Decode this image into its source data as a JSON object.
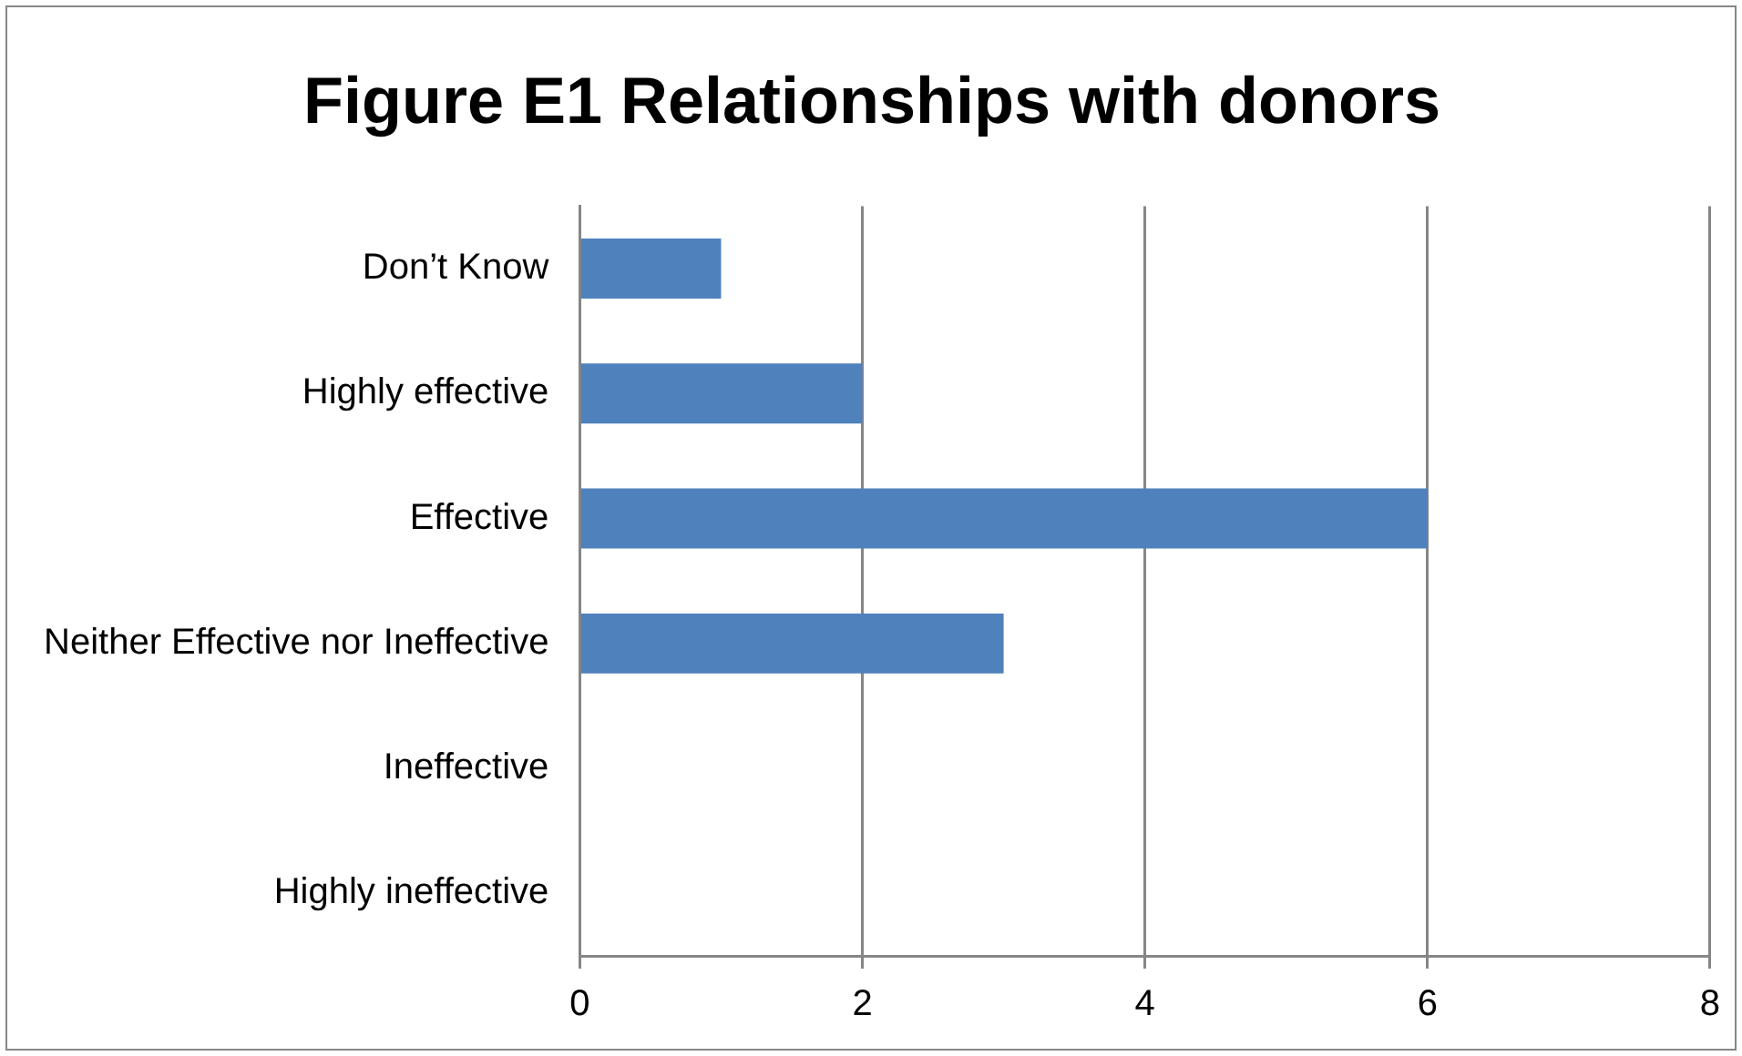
{
  "chart_data": {
    "type": "bar",
    "orientation": "horizontal",
    "title": "Figure E1 Relationships with donors",
    "categories": [
      "Don’t Know",
      "Highly effective",
      "Effective",
      "Neither Effective nor Ineffective",
      "Ineffective",
      "Highly ineffective"
    ],
    "values": [
      1,
      2,
      6,
      3,
      0,
      0
    ],
    "color": "#4f81bd",
    "xlim": [
      0,
      8
    ],
    "xticks": [
      0,
      2,
      4,
      6,
      8
    ],
    "grid": "x",
    "legend": false
  }
}
